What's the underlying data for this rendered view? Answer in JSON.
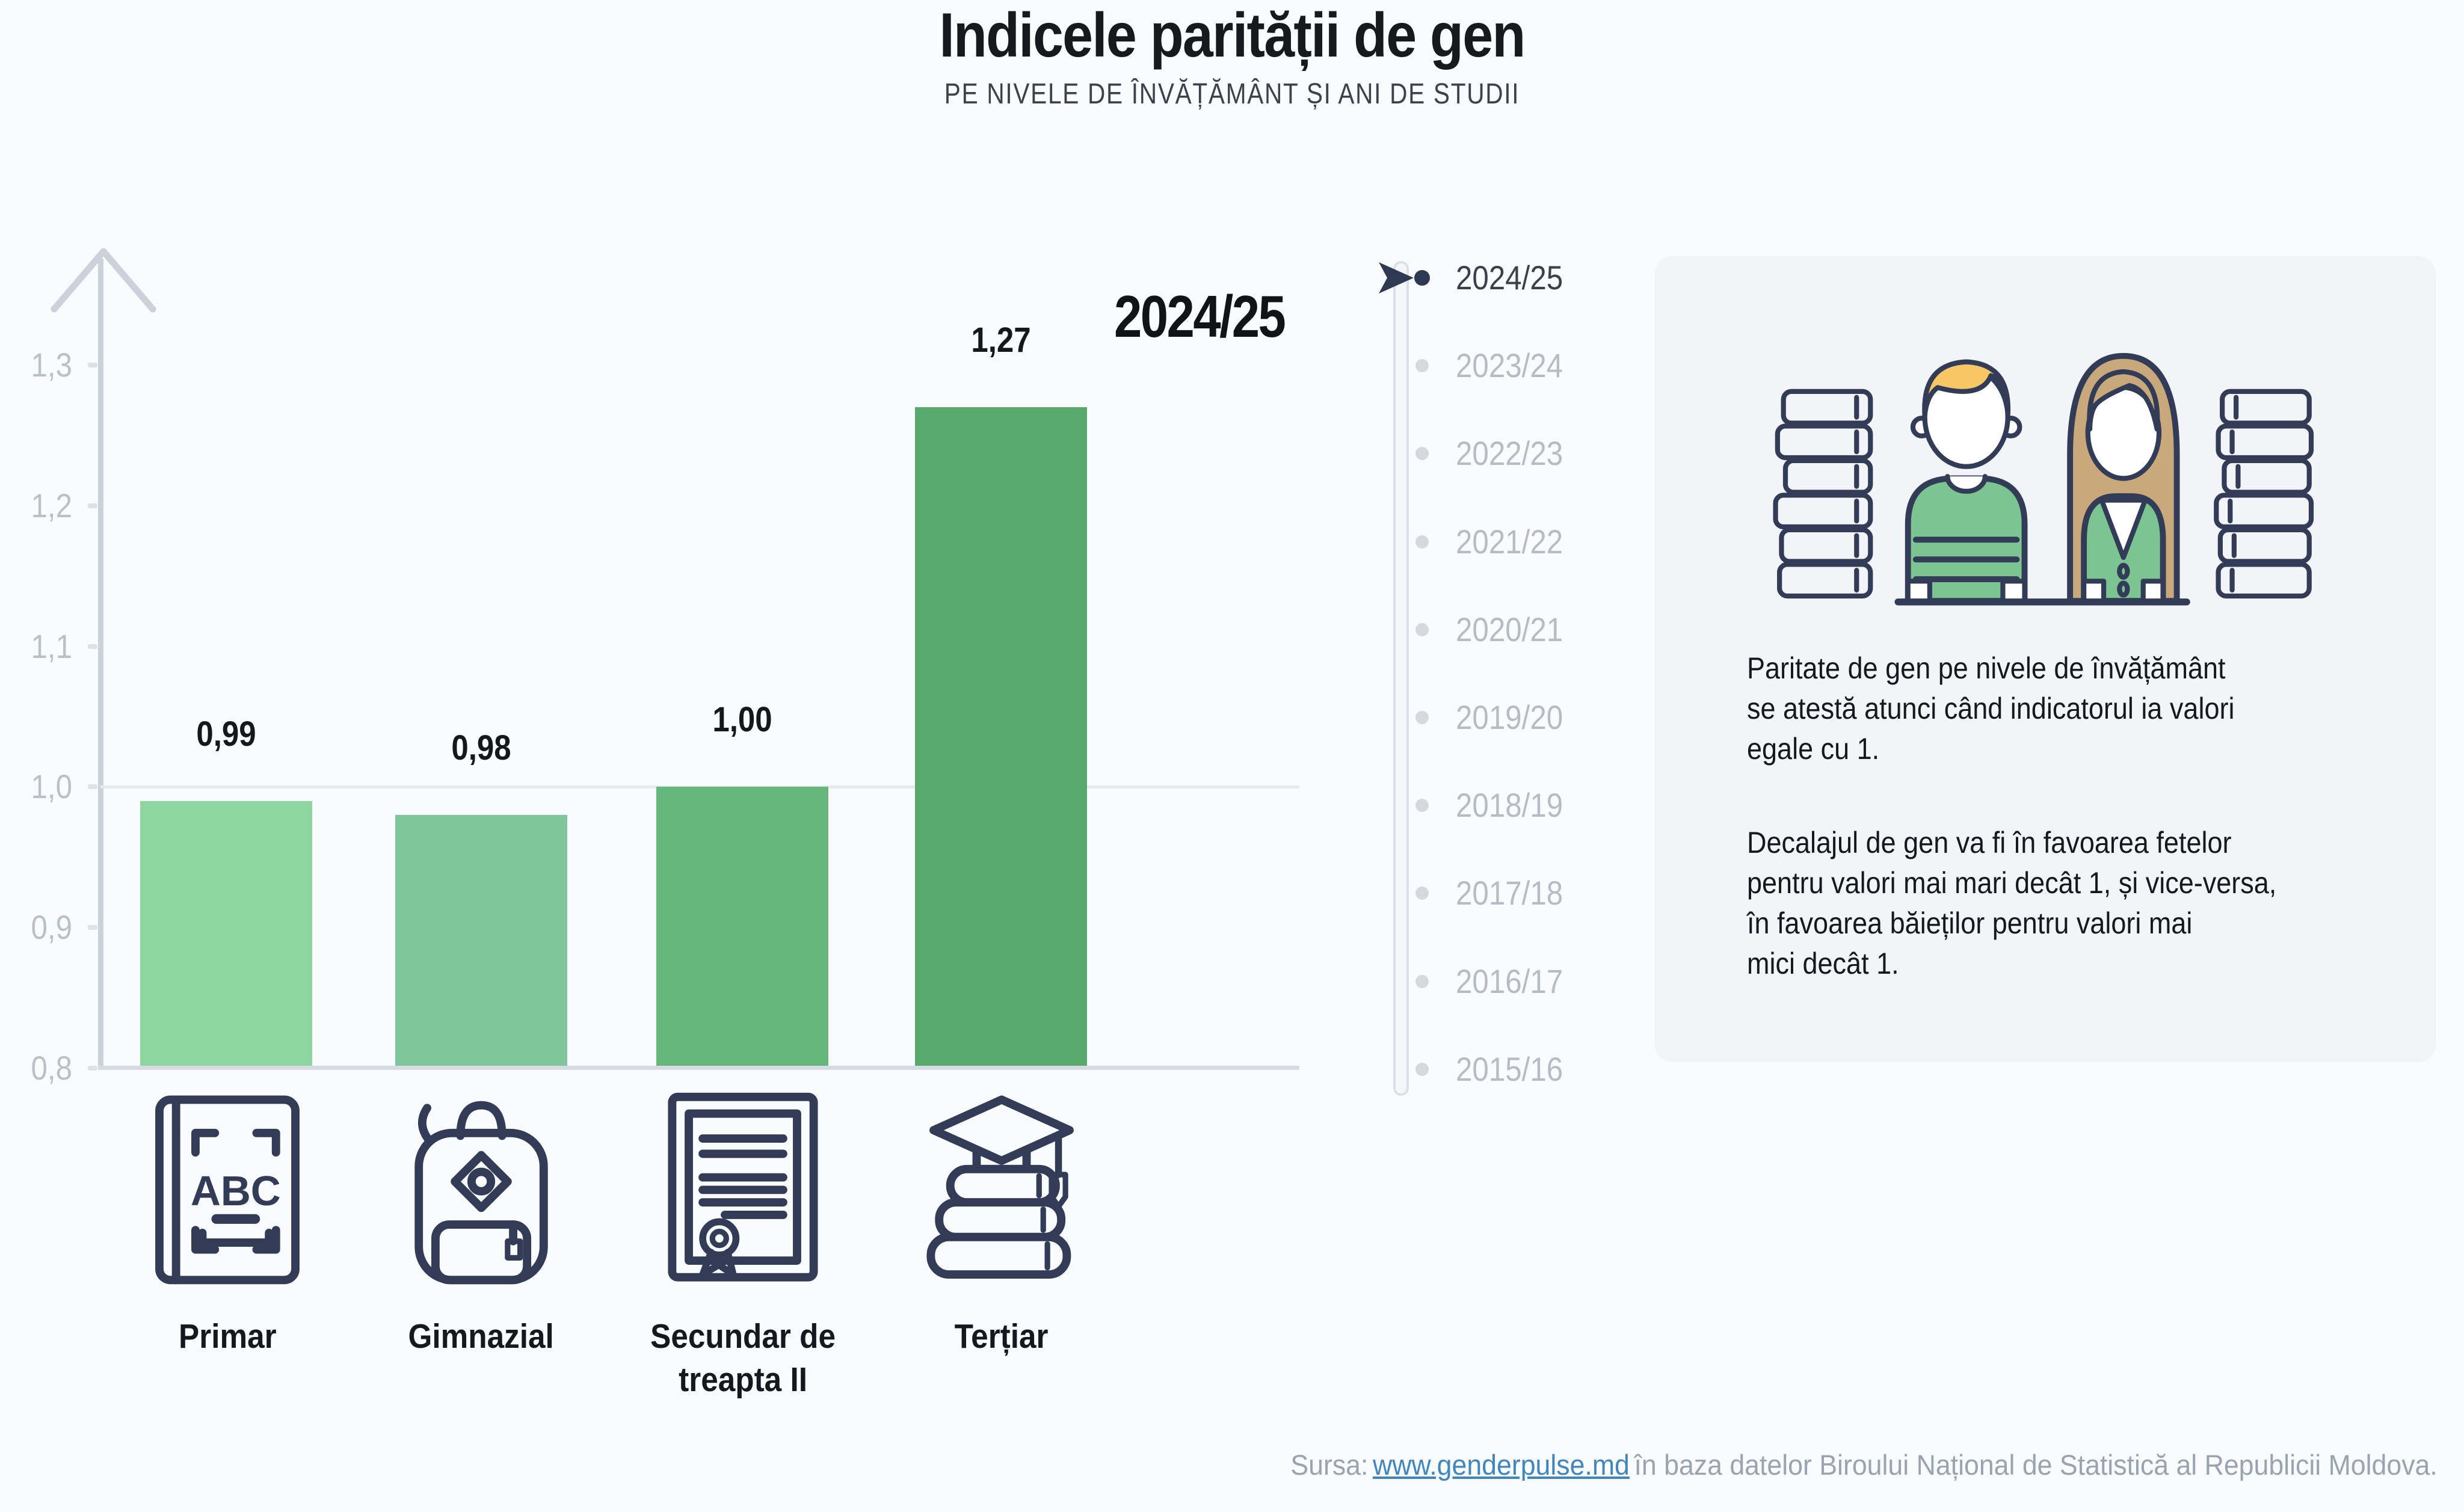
{
  "title": "Indicele parității de gen",
  "subtitle": "PE NIVELE DE ÎNVĂȚĂMÂNT ȘI ANI DE STUDII",
  "selected_year": "2024/25",
  "chart_data": {
    "type": "bar",
    "title": "Indicele parității de gen",
    "subtitle": "Pe nivele de învățământ și ani de studii",
    "categories": [
      "Primar",
      "Gimnazial",
      "Secundar de treapta II",
      "Terțiar"
    ],
    "values": [
      0.99,
      0.98,
      1.0,
      1.27
    ],
    "value_labels": [
      "0,99",
      "0,98",
      "1,00",
      "1,27"
    ],
    "ylim": [
      0.8,
      1.3
    ],
    "ytick_labels": [
      "1,3",
      "1,2",
      "1,1",
      "1,0",
      "0,9",
      "0,8"
    ],
    "reference_line": 1.0,
    "bar_colors": [
      "#8ed6a0",
      "#7fc79a",
      "#65b77c",
      "#57a96c"
    ],
    "grid": "horizontal reference line at 1,0 only",
    "legend": "none",
    "xlabel": "",
    "ylabel": ""
  },
  "timeline": {
    "years": [
      "2024/25",
      "2023/24",
      "2022/23",
      "2021/22",
      "2020/21",
      "2019/20",
      "2018/19",
      "2017/18",
      "2016/17",
      "2015/16"
    ],
    "active_year": "2024/25"
  },
  "category_captions": [
    "Primar",
    "Gimnazial",
    "Secundar de\ntreapta II",
    "Terțiar"
  ],
  "info_panel": {
    "paragraph1": "Paritate de gen pe nivele de învățământ\nse atestă atunci când indicatorul ia valori\negale cu 1.",
    "paragraph2": "Decalajul de gen va fi în favoarea fetelor\npentru valori mai mari decât 1, și vice-versa,\nîn favoarea băieților pentru valori mai\nmici decât 1."
  },
  "footer": {
    "prefix": "Sursa:",
    "link_text": "www.genderpulse.md",
    "suffix": "în baza datelor Biroului Național de Statistică al Republicii Moldova."
  },
  "colors": {
    "background": "#fafbfc",
    "panel_background": "#f2f4f8",
    "navy_outline": "#323c56",
    "axis_gray": "#ccd2da",
    "gridline": "#e6eaee",
    "tick_text": "#b9c0ca",
    "inactive_year": "#b5bcc6",
    "active_year": "#3b414c",
    "link_blue": "#4187bd",
    "footer_gray": "#9aa4b0",
    "boy_hair": "#f7c766",
    "girl_hair": "#c9a87b",
    "sweater_green": "#7cc492"
  },
  "icons": [
    "abc-book-icon",
    "backpack-icon",
    "diploma-icon",
    "books-graduation-cap-icon",
    "boy-and-girl-with-books-illustration",
    "axis-up-arrow-icon",
    "timeline-cursor-icon"
  ]
}
